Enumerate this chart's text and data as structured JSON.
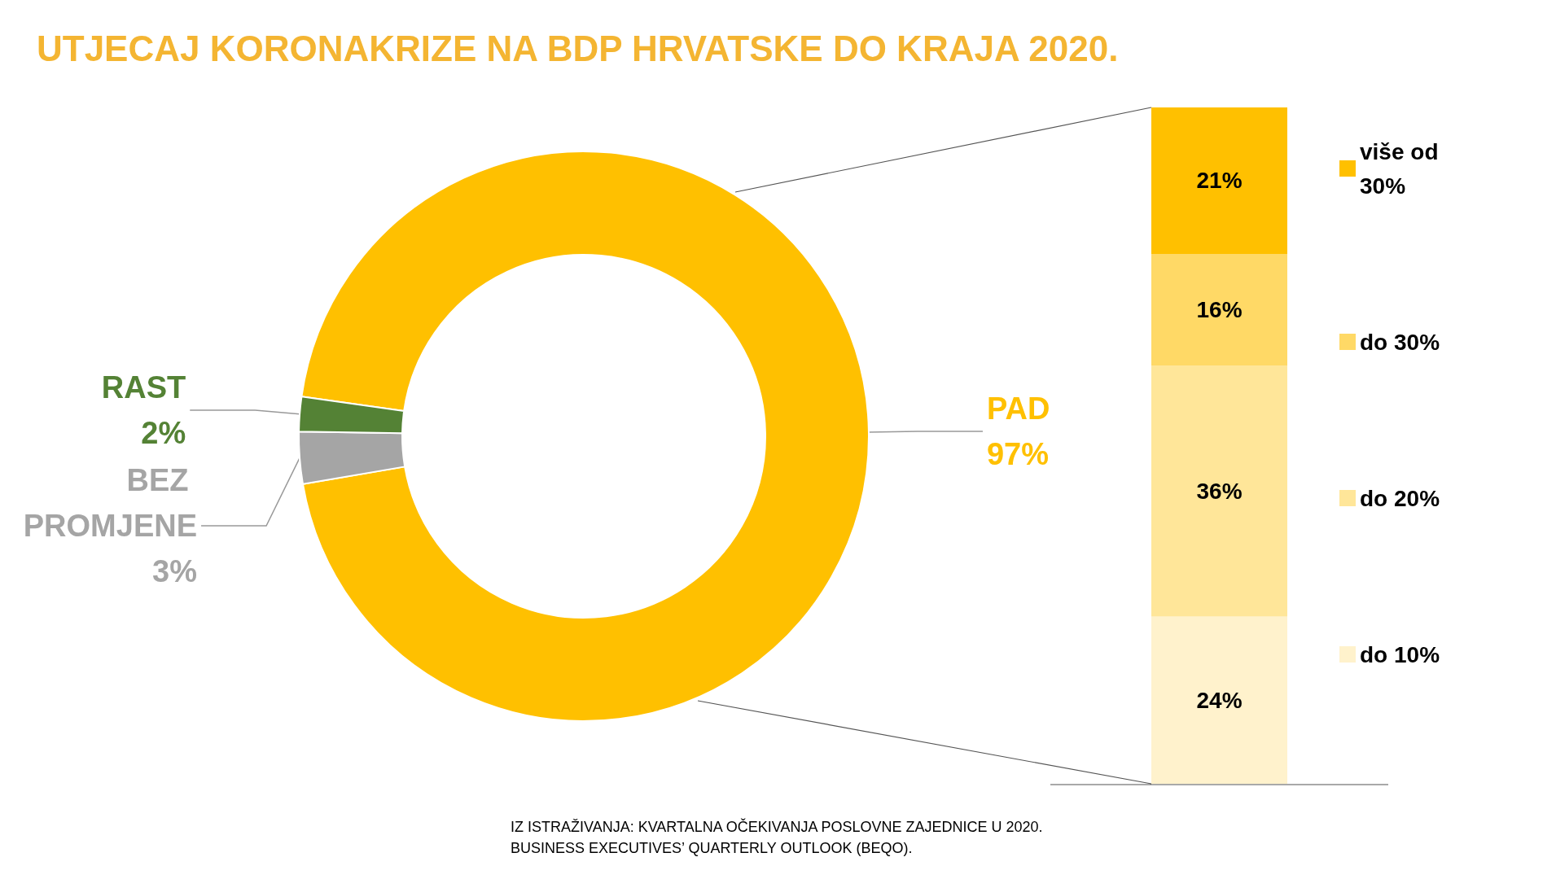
{
  "chart_data": [
    {
      "type": "donut",
      "title": "UTJECAJ KORONAKRIZE NA BDP HRVATSKE DO KRAJA 2020.",
      "categories": [
        "PAD",
        "BEZ PROMJENE",
        "RAST"
      ],
      "values": [
        97,
        3,
        2
      ],
      "colors": [
        "#ffc000",
        "#a5a5a5",
        "#548235"
      ],
      "value_labels": [
        "97%",
        "3%",
        "2%"
      ],
      "legend": false,
      "annotations": [
        "IZ ISTRAŽIVANJA: KVARTALNA OČEKIVANJA POSLOVNE ZAJEDNICE U 2020.",
        "BUSINESS EXECUTIVES’ QUARTERLY OUTLOOK (BEQO)."
      ]
    },
    {
      "type": "bar",
      "stacked": true,
      "categories": [
        null
      ],
      "legend": "right",
      "series": [
        {
          "name": "do 10%",
          "color": "#fff2cc",
          "values": [
            24
          ],
          "value_labels": [
            "24%"
          ]
        },
        {
          "name": "do 20%",
          "color": "#ffe699",
          "values": [
            36
          ],
          "value_labels": [
            "36%"
          ]
        },
        {
          "name": "do 30%",
          "color": "#ffd966",
          "values": [
            16
          ],
          "value_labels": [
            "16%"
          ]
        },
        {
          "name": "više od 30%",
          "color": "#ffc000",
          "values": [
            21
          ],
          "value_labels": [
            "21%"
          ]
        }
      ]
    }
  ]
}
